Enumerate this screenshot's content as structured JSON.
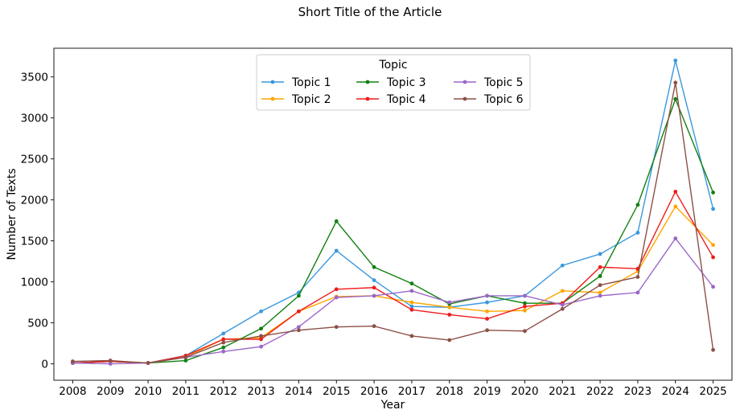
{
  "chart_data": {
    "type": "line",
    "title": "Short Title of the Article",
    "xlabel": "Year",
    "ylabel": "Number of Texts",
    "x": [
      2008,
      2009,
      2010,
      2011,
      2012,
      2013,
      2014,
      2015,
      2016,
      2017,
      2018,
      2019,
      2020,
      2021,
      2022,
      2023,
      2024,
      2025
    ],
    "yticks": [
      0,
      500,
      1000,
      1500,
      2000,
      2500,
      3000,
      3500
    ],
    "ylim": [
      -200,
      3850
    ],
    "xlim": [
      2007.5,
      2025.5
    ],
    "grid": false,
    "legend": {
      "title": "Topic",
      "placement": "top-center",
      "columns": 3
    },
    "series": [
      {
        "name": "Topic 1",
        "color": "#3b98dd",
        "values": [
          10,
          30,
          10,
          100,
          370,
          640,
          870,
          1380,
          1020,
          700,
          690,
          750,
          830,
          1200,
          1340,
          1600,
          3700,
          1890
        ]
      },
      {
        "name": "Topic 2",
        "color": "#ffa500",
        "values": [
          10,
          30,
          10,
          80,
          300,
          320,
          640,
          820,
          830,
          750,
          690,
          640,
          650,
          890,
          870,
          1130,
          1920,
          1450
        ]
      },
      {
        "name": "Topic 3",
        "color": "#128012",
        "values": [
          10,
          30,
          10,
          40,
          200,
          430,
          830,
          1740,
          1180,
          980,
          730,
          830,
          740,
          740,
          1070,
          1940,
          3230,
          2090
        ]
      },
      {
        "name": "Topic 4",
        "color": "#ee1c1c",
        "values": [
          10,
          30,
          10,
          100,
          300,
          300,
          640,
          910,
          930,
          660,
          600,
          550,
          700,
          740,
          1180,
          1160,
          2100,
          1300
        ]
      },
      {
        "name": "Topic 5",
        "color": "#9b66c8",
        "values": [
          10,
          0,
          10,
          80,
          150,
          210,
          450,
          810,
          830,
          890,
          750,
          830,
          830,
          720,
          830,
          870,
          1530,
          940
        ]
      },
      {
        "name": "Topic 6",
        "color": "#8b5046",
        "values": [
          30,
          40,
          10,
          80,
          260,
          340,
          410,
          450,
          460,
          340,
          290,
          410,
          400,
          670,
          960,
          1060,
          3430,
          170
        ]
      }
    ]
  }
}
